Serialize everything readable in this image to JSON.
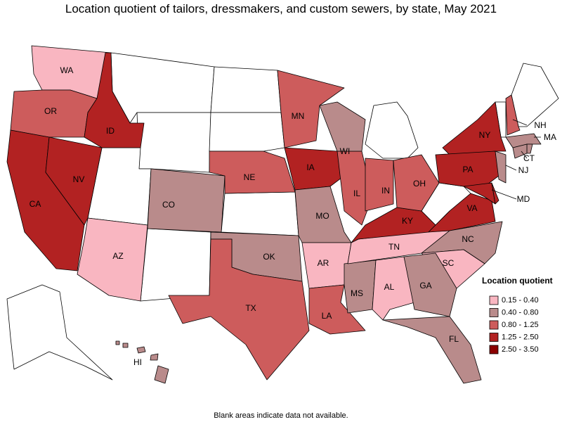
{
  "title": "Location quotient of tailors, dressmakers, and custom sewers, by state, May 2021",
  "states": [
    {
      "label": "WA",
      "color": "#f9b6c1"
    },
    {
      "label": "OR",
      "color": "#cd5c5c"
    },
    {
      "label": "CA",
      "color": "#b22222"
    },
    {
      "label": "NV",
      "color": "#b22222"
    },
    {
      "label": "ID",
      "color": "#b22222"
    },
    {
      "label": "AZ",
      "color": "#f9b6c1"
    },
    {
      "label": "CO",
      "color": "#b98b8b"
    },
    {
      "label": "NE",
      "color": "#cd5c5c"
    },
    {
      "label": "MN",
      "color": "#cd5c5c"
    },
    {
      "label": "IA",
      "color": "#b22222"
    },
    {
      "label": "MO",
      "color": "#b98b8b"
    },
    {
      "label": "OK",
      "color": "#b98b8b"
    },
    {
      "label": "TX",
      "color": "#cd5c5c"
    },
    {
      "label": "AR",
      "color": "#f9b6c1"
    },
    {
      "label": "LA",
      "color": "#cd5c5c"
    },
    {
      "label": "MS",
      "color": "#b98b8b"
    },
    {
      "label": "AL",
      "color": "#f9b6c1"
    },
    {
      "label": "TN",
      "color": "#f9b6c1"
    },
    {
      "label": "KY",
      "color": "#b22222"
    },
    {
      "label": "IL",
      "color": "#cd5c5c"
    },
    {
      "label": "IN",
      "color": "#cd5c5c"
    },
    {
      "label": "OH",
      "color": "#cd5c5c"
    },
    {
      "label": "WI",
      "color": "#b98b8b"
    },
    {
      "label": "NY",
      "color": "#b22222"
    },
    {
      "label": "PA",
      "color": "#b22222"
    },
    {
      "label": "VA",
      "color": "#b22222"
    },
    {
      "label": "NC",
      "color": "#b98b8b"
    },
    {
      "label": "SC",
      "color": "#f9b6c1"
    },
    {
      "label": "GA",
      "color": "#b98b8b"
    },
    {
      "label": "FL",
      "color": "#b98b8b"
    },
    {
      "label": "HI",
      "color": "#b98b8b"
    },
    {
      "label": "NH",
      "color": "#cd5c5c"
    },
    {
      "label": "MA",
      "color": "#b98b8b"
    },
    {
      "label": "CT",
      "color": "#b98b8b"
    },
    {
      "label": "NJ",
      "color": "#b98b8b"
    },
    {
      "label": "MD",
      "color": "#b22222"
    }
  ],
  "legend": {
    "title": "Location quotient",
    "items": [
      {
        "label": "0.15 - 0.40",
        "color": "#f9b6c1"
      },
      {
        "label": "0.40 - 0.80",
        "color": "#b98b8b"
      },
      {
        "label": "0.80 - 1.25",
        "color": "#cd5c5c"
      },
      {
        "label": "1.25 - 2.50",
        "color": "#b22222"
      },
      {
        "label": "2.50 - 3.50",
        "color": "#8b0000"
      }
    ]
  },
  "note": "Blank areas indicate data not available."
}
